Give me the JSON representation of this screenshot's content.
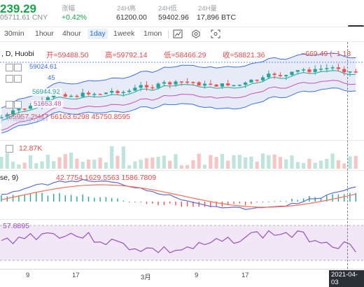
{
  "ticker": {
    "price": "239.29",
    "price_cny": "05711.61 CNY",
    "change_label": "涨幅",
    "change_value": "+0.42%",
    "high_label": "24H高",
    "high_value": "61200.00",
    "low_label": "24H低",
    "low_value": "59402.96",
    "volume_label": "24H量",
    "volume_value": "17,896 BTC"
  },
  "toolbar": {
    "timeframes": [
      "30min",
      "1hour",
      "4hour",
      "1day",
      "1week",
      "1mon"
    ],
    "active_timeframe": "1day",
    "icons": [
      "chart-type-icon",
      "settings-icon",
      "screenshot-icon"
    ]
  },
  "chart": {
    "symbol_label": ", D, Huobi",
    "open_label": "开=59488.50",
    "high_label": "高=59792.14",
    "low_label": "低=58466.29",
    "close_label": "收=58821.36",
    "change_label": "−669.49 (−1.13",
    "boll_upper": "59024.61",
    "boll_mid": "56944.92",
    "boll_lower": "51653.48",
    "ma_line": "55957.2H47    66163.6298    45750.8595",
    "watermark": "y TradingView",
    "price_tag_mid": "45"
  },
  "volume": {
    "value": "12.87K"
  },
  "macd": {
    "label": "se, 9)",
    "values": "42.7754    1629.5563    1586.7809"
  },
  "rsi": {
    "value": "57.8895"
  },
  "xaxis": {
    "ticks": [
      "9",
      "17",
      "3月",
      "9",
      "17"
    ],
    "cursor_date": "2021-04-03"
  },
  "colors": {
    "up": "#26a69a",
    "down": "#ef5350",
    "boll_fill": "#dde3f3",
    "ma_blue": "#3b6ee3",
    "ma_pink": "#c94fb8",
    "macd_line": "#5b6bd8",
    "signal_line": "#ff6e57",
    "rsi_line": "#9a4fc0",
    "rsi_fill": "#f1e7f6"
  }
}
